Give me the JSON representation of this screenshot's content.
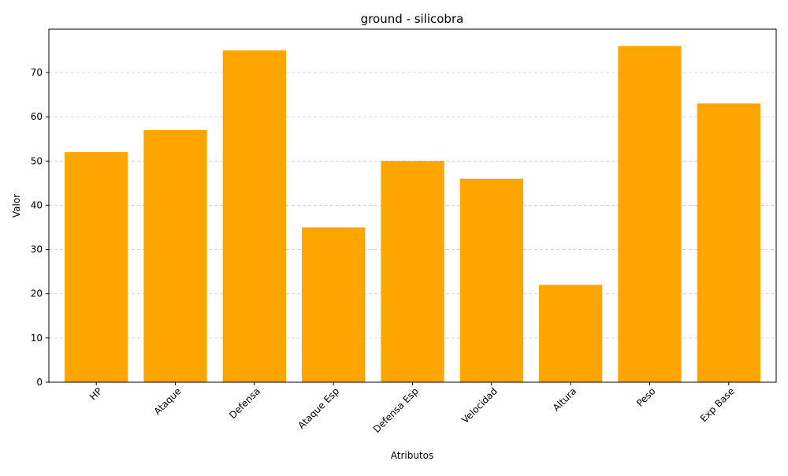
{
  "chart_data": {
    "type": "bar",
    "title": "ground - silicobra",
    "xlabel": "Atributos",
    "ylabel": "Valor",
    "categories": [
      "HP",
      "Ataque",
      "Defensa",
      "Ataque Esp",
      "Defensa Esp",
      "Velocidad",
      "Altura",
      "Peso",
      "Exp Base"
    ],
    "values": [
      52,
      57,
      75,
      35,
      50,
      46,
      22,
      76,
      63
    ],
    "ylim": [
      0,
      79.8
    ],
    "yticks": [
      0,
      10,
      20,
      30,
      40,
      50,
      60,
      70
    ],
    "grid": "y-dashed",
    "bar_color": "#FFA500",
    "grid_color": "#cccccc",
    "axis_color": "#000000"
  }
}
